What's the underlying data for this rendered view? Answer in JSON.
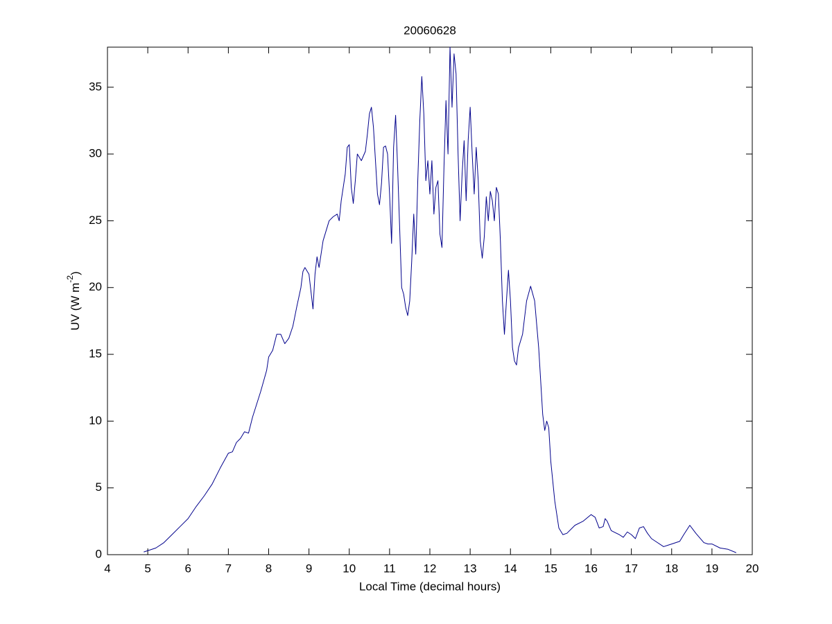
{
  "chart_data": {
    "type": "line",
    "title": "20060628",
    "xlabel": "Local Time (decimal hours)",
    "ylabel": [
      "UV (W m",
      "-2",
      ")"
    ],
    "color": "#00008b",
    "grid": false,
    "xlim": [
      4,
      20
    ],
    "xticks": [
      4,
      5,
      6,
      7,
      8,
      9,
      10,
      11,
      12,
      13,
      14,
      15,
      16,
      17,
      18,
      19,
      20
    ],
    "ylim": [
      0,
      38
    ],
    "yticks": [
      0,
      5,
      10,
      15,
      20,
      25,
      30,
      35
    ],
    "x": [
      4.9,
      5.0,
      5.2,
      5.4,
      5.6,
      5.8,
      6.0,
      6.2,
      6.4,
      6.6,
      6.8,
      7.0,
      7.1,
      7.2,
      7.3,
      7.4,
      7.5,
      7.6,
      7.8,
      7.95,
      8.0,
      8.1,
      8.2,
      8.3,
      8.4,
      8.5,
      8.6,
      8.7,
      8.8,
      8.85,
      8.9,
      9.0,
      9.1,
      9.15,
      9.2,
      9.25,
      9.35,
      9.5,
      9.6,
      9.7,
      9.75,
      9.8,
      9.9,
      9.95,
      10.0,
      10.05,
      10.1,
      10.15,
      10.2,
      10.3,
      10.4,
      10.45,
      10.5,
      10.55,
      10.6,
      10.7,
      10.75,
      10.8,
      10.85,
      10.9,
      10.95,
      11.0,
      11.05,
      11.1,
      11.15,
      11.2,
      11.25,
      11.3,
      11.35,
      11.4,
      11.45,
      11.5,
      11.55,
      11.6,
      11.65,
      11.7,
      11.75,
      11.8,
      11.85,
      11.9,
      11.95,
      12.0,
      12.05,
      12.1,
      12.15,
      12.2,
      12.25,
      12.3,
      12.35,
      12.4,
      12.45,
      12.5,
      12.55,
      12.6,
      12.65,
      12.7,
      12.75,
      12.8,
      12.85,
      12.9,
      12.95,
      13.0,
      13.05,
      13.1,
      13.15,
      13.2,
      13.25,
      13.3,
      13.35,
      13.4,
      13.45,
      13.5,
      13.55,
      13.6,
      13.65,
      13.7,
      13.75,
      13.8,
      13.85,
      13.9,
      13.95,
      14.0,
      14.05,
      14.1,
      14.15,
      14.2,
      14.3,
      14.4,
      14.5,
      14.6,
      14.7,
      14.8,
      14.85,
      14.9,
      14.95,
      15.0,
      15.1,
      15.2,
      15.3,
      15.4,
      15.6,
      15.8,
      16.0,
      16.1,
      16.2,
      16.3,
      16.35,
      16.4,
      16.5,
      16.7,
      16.8,
      16.9,
      17.0,
      17.1,
      17.2,
      17.3,
      17.4,
      17.5,
      17.6,
      17.8,
      17.9,
      18.0,
      18.2,
      18.3,
      18.45,
      18.6,
      18.8,
      18.9,
      19.0,
      19.2,
      19.4,
      19.6
    ],
    "values": [
      0.2,
      0.3,
      0.5,
      0.9,
      1.5,
      2.1,
      2.7,
      3.6,
      4.4,
      5.3,
      6.5,
      7.6,
      7.7,
      8.4,
      8.7,
      9.2,
      9.1,
      10.3,
      12.2,
      13.8,
      14.8,
      15.3,
      16.5,
      16.5,
      15.8,
      16.2,
      17.1,
      18.6,
      20.0,
      21.2,
      21.5,
      21.0,
      18.4,
      21.0,
      22.3,
      21.5,
      23.5,
      25.0,
      25.3,
      25.5,
      25.0,
      26.5,
      28.5,
      30.5,
      30.7,
      27.5,
      26.3,
      28.0,
      30.0,
      29.5,
      30.2,
      31.5,
      33.0,
      33.5,
      32.0,
      27.0,
      26.2,
      27.8,
      30.5,
      30.6,
      30.0,
      27.0,
      23.3,
      30.5,
      32.9,
      29.0,
      24.5,
      20.0,
      19.5,
      18.5,
      17.9,
      19.0,
      22.0,
      25.5,
      22.5,
      28.0,
      32.5,
      35.8,
      33.0,
      28.0,
      29.5,
      27.0,
      29.5,
      25.5,
      27.5,
      28.0,
      24.0,
      23.0,
      29.0,
      34.0,
      30.0,
      38.0,
      33.5,
      37.5,
      36.0,
      30.0,
      25.0,
      28.5,
      31.0,
      26.5,
      31.0,
      33.5,
      30.0,
      27.0,
      30.5,
      28.0,
      23.5,
      22.2,
      23.8,
      26.8,
      25.0,
      27.2,
      26.5,
      25.0,
      27.5,
      27.0,
      23.5,
      19.0,
      16.5,
      19.0,
      21.3,
      19.0,
      15.5,
      14.5,
      14.2,
      15.5,
      16.5,
      19.0,
      20.1,
      19.0,
      15.5,
      10.5,
      9.3,
      10.0,
      9.5,
      7.0,
      4.0,
      2.0,
      1.5,
      1.6,
      2.2,
      2.5,
      3.0,
      2.8,
      2.0,
      2.1,
      2.7,
      2.5,
      1.8,
      1.5,
      1.3,
      1.7,
      1.5,
      1.2,
      2.0,
      2.1,
      1.6,
      1.2,
      1.0,
      0.6,
      0.7,
      0.8,
      1.0,
      1.5,
      2.2,
      1.6,
      0.9,
      0.8,
      0.8,
      0.5,
      0.4,
      0.15
    ]
  }
}
